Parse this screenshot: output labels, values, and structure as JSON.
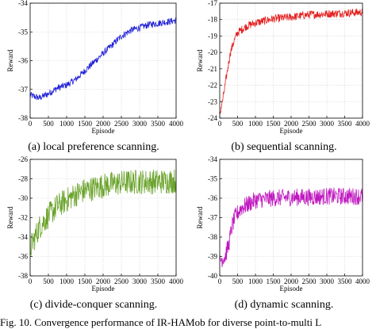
{
  "figure_caption": "Fig. 10.   Convergence performance of IR-HAMob for diverse point-to-multi L",
  "colors": {
    "blue": "#1f1fd6",
    "red": "#e51f1f",
    "green": "#6aa32a",
    "magenta": "#c018c0",
    "frame": "#000000",
    "grid": "#d4d4d4"
  },
  "chart_data": [
    {
      "type": "line",
      "caption": "(a)  local preference scanning.",
      "xlabel": "Episode",
      "ylabel": "Reward",
      "xlim": [
        0,
        4000
      ],
      "ylim": [
        -38,
        -34
      ],
      "xticks": [
        0,
        500,
        1000,
        1500,
        2000,
        2500,
        3000,
        3500,
        4000
      ],
      "yticks": [
        -38,
        -37,
        -36,
        -35,
        -34
      ],
      "grid": true,
      "noise": 0.12,
      "series": [
        {
          "color": "#1f1fd6",
          "x": [
            0,
            250,
            500,
            750,
            1000,
            1250,
            1500,
            1750,
            2000,
            2250,
            2500,
            2750,
            3000,
            3250,
            3500,
            3750,
            4000
          ],
          "y": [
            -37.2,
            -37.3,
            -37.15,
            -36.95,
            -36.85,
            -36.65,
            -36.35,
            -36.05,
            -35.75,
            -35.45,
            -35.15,
            -34.95,
            -34.85,
            -34.75,
            -34.7,
            -34.65,
            -34.6
          ]
        }
      ]
    },
    {
      "type": "line",
      "caption": "(b)  sequential scanning.",
      "xlabel": "Episode",
      "ylabel": "Reward",
      "xlim": [
        0,
        4000
      ],
      "ylim": [
        -24,
        -17
      ],
      "xticks": [
        0,
        500,
        1000,
        1500,
        2000,
        2500,
        3000,
        3500,
        4000
      ],
      "yticks": [
        -24,
        -23,
        -22,
        -21,
        -20,
        -19,
        -18,
        -17
      ],
      "grid": true,
      "noise": 0.25,
      "series": [
        {
          "color": "#e51f1f",
          "x": [
            0,
            100,
            200,
            300,
            400,
            500,
            750,
            1000,
            1500,
            2000,
            2500,
            3000,
            3500,
            4000
          ],
          "y": [
            -23.8,
            -22.7,
            -21.3,
            -20.0,
            -19.3,
            -18.8,
            -18.4,
            -18.2,
            -17.95,
            -17.85,
            -17.7,
            -17.65,
            -17.6,
            -17.55
          ]
        }
      ]
    },
    {
      "type": "line",
      "caption": "(c)  divide-conquer scanning.",
      "xlabel": "Episode",
      "ylabel": "Reward",
      "xlim": [
        0,
        4000
      ],
      "ylim": [
        -38,
        -26
      ],
      "xticks": [
        0,
        500,
        1000,
        1500,
        2000,
        2500,
        3000,
        3500,
        4000
      ],
      "yticks": [
        -38,
        -36,
        -34,
        -32,
        -30,
        -28,
        -26
      ],
      "grid": true,
      "noise": 1.3,
      "series": [
        {
          "color": "#6aa32a",
          "x": [
            0,
            250,
            500,
            750,
            1000,
            1250,
            1500,
            2000,
            2500,
            3000,
            3500,
            4000
          ],
          "y": [
            -35.2,
            -33.0,
            -31.8,
            -30.8,
            -30.2,
            -29.6,
            -29.2,
            -28.7,
            -28.4,
            -28.3,
            -28.3,
            -28.2
          ]
        }
      ]
    },
    {
      "type": "line",
      "caption": "(d)  dynamic scanning.",
      "xlabel": "Episode",
      "ylabel": "Reward",
      "xlim": [
        0,
        4000
      ],
      "ylim": [
        -40,
        -34
      ],
      "xticks": [
        0,
        500,
        1000,
        1500,
        2000,
        2500,
        3000,
        3500,
        4000
      ],
      "yticks": [
        -40,
        -39,
        -38,
        -37,
        -36,
        -35,
        -34
      ],
      "grid": true,
      "noise": 0.45,
      "series": [
        {
          "color": "#c018c0",
          "x": [
            0,
            150,
            250,
            350,
            450,
            600,
            800,
            1000,
            1500,
            2000,
            2500,
            3000,
            3500,
            4000
          ],
          "y": [
            -39.2,
            -39.0,
            -38.4,
            -37.4,
            -36.9,
            -36.5,
            -36.3,
            -36.1,
            -36.0,
            -35.95,
            -35.95,
            -35.9,
            -35.9,
            -35.9
          ]
        }
      ]
    }
  ]
}
